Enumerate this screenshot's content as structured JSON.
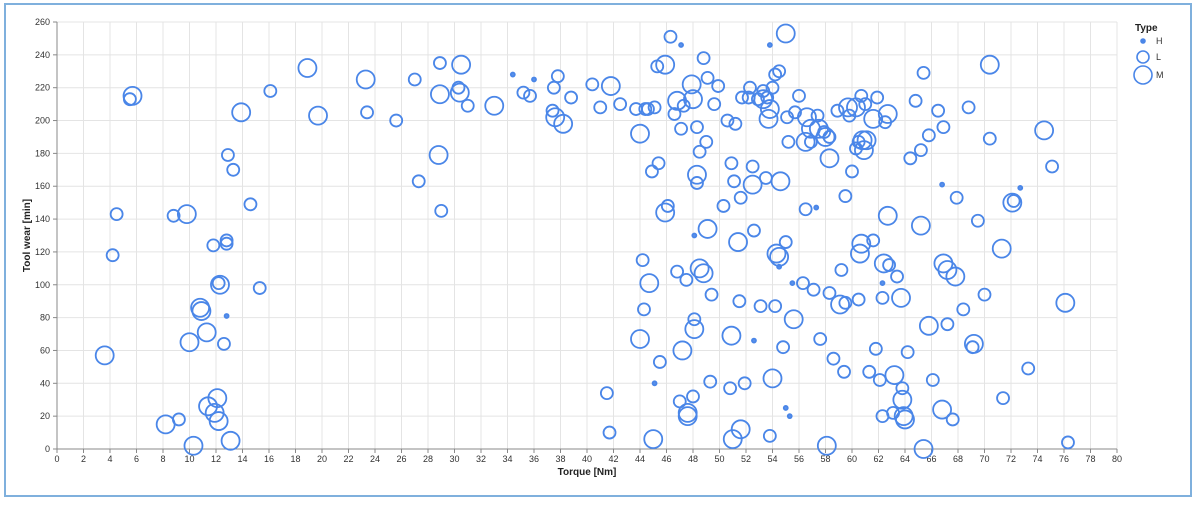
{
  "chart_data": {
    "type": "scatter",
    "xlabel": "Torque [Nm]",
    "ylabel": "Tool wear [min]",
    "xlim": [
      0,
      80
    ],
    "ylim": [
      0,
      260
    ],
    "xticks": [
      0,
      2,
      4,
      6,
      8,
      10,
      12,
      14,
      16,
      18,
      20,
      22,
      24,
      26,
      28,
      30,
      32,
      34,
      36,
      38,
      40,
      42,
      44,
      46,
      48,
      50,
      52,
      54,
      56,
      58,
      60,
      62,
      64,
      66,
      68,
      70,
      72,
      74,
      76,
      78,
      80
    ],
    "yticks": [
      0,
      20,
      40,
      60,
      80,
      100,
      120,
      140,
      160,
      180,
      200,
      220,
      240,
      260
    ],
    "grid": true,
    "legend": {
      "title": "Type",
      "placement": "right",
      "entries": [
        "H",
        "L",
        "M"
      ]
    },
    "color": "#4a86e8",
    "series": [
      {
        "name": "H",
        "points": [
          [
            12.8,
            81
          ],
          [
            34.4,
            228
          ],
          [
            36,
            225
          ],
          [
            45.1,
            40
          ],
          [
            47.1,
            246
          ],
          [
            48.1,
            130
          ],
          [
            52.6,
            66
          ],
          [
            53.8,
            246
          ],
          [
            54.5,
            111
          ],
          [
            55,
            25
          ],
          [
            55.3,
            20
          ],
          [
            55.5,
            101
          ],
          [
            57.3,
            147
          ],
          [
            62.3,
            101
          ],
          [
            66.8,
            161
          ],
          [
            72.7,
            159
          ]
        ]
      },
      {
        "name": "L",
        "points": [
          [
            4.2,
            118
          ],
          [
            4.5,
            143
          ],
          [
            5.5,
            213
          ],
          [
            8.8,
            142
          ],
          [
            9.2,
            18
          ],
          [
            11.8,
            124
          ],
          [
            12.2,
            101
          ],
          [
            12.6,
            64
          ],
          [
            12.8,
            127
          ],
          [
            12.8,
            125
          ],
          [
            12.9,
            179
          ],
          [
            13.3,
            170
          ],
          [
            14.6,
            149
          ],
          [
            15.3,
            98
          ],
          [
            16.1,
            218
          ],
          [
            23.4,
            205
          ],
          [
            25.6,
            200
          ],
          [
            27,
            225
          ],
          [
            27.3,
            163
          ],
          [
            28.9,
            235
          ],
          [
            29,
            145
          ],
          [
            30.3,
            220
          ],
          [
            31,
            209
          ],
          [
            35.2,
            217
          ],
          [
            35.7,
            215
          ],
          [
            37.4,
            206
          ],
          [
            37.5,
            220
          ],
          [
            37.8,
            227
          ],
          [
            38.8,
            214
          ],
          [
            40.4,
            222
          ],
          [
            41,
            208
          ],
          [
            41.5,
            34
          ],
          [
            41.7,
            10
          ],
          [
            44.2,
            115
          ],
          [
            44.3,
            85
          ],
          [
            44.4,
            207
          ],
          [
            45.1,
            208
          ],
          [
            45.4,
            174
          ],
          [
            45.5,
            53
          ],
          [
            46.1,
            148
          ],
          [
            46.3,
            251
          ],
          [
            46.6,
            204
          ],
          [
            46.8,
            108
          ],
          [
            47,
            29
          ],
          [
            47.3,
            209
          ],
          [
            47.5,
            103
          ],
          [
            48,
            32
          ],
          [
            48.1,
            79
          ],
          [
            48.3,
            162
          ],
          [
            48.5,
            181
          ],
          [
            48.8,
            238
          ],
          [
            49,
            187
          ],
          [
            49.1,
            226
          ],
          [
            49.3,
            41
          ],
          [
            49.4,
            94
          ],
          [
            49.6,
            210
          ],
          [
            49.9,
            221
          ],
          [
            50.3,
            148
          ],
          [
            50.6,
            200
          ],
          [
            50.8,
            37
          ],
          [
            50.9,
            174
          ],
          [
            51.1,
            163
          ],
          [
            51.5,
            90
          ],
          [
            51.6,
            153
          ],
          [
            51.9,
            40
          ],
          [
            52.2,
            214
          ],
          [
            52.5,
            172
          ],
          [
            52.6,
            133
          ],
          [
            52.9,
            213
          ],
          [
            53.1,
            87
          ],
          [
            53.3,
            218
          ],
          [
            53.5,
            165
          ],
          [
            53.8,
            8
          ],
          [
            54.2,
            87
          ],
          [
            54.8,
            62
          ],
          [
            55,
            126
          ],
          [
            55.2,
            187
          ],
          [
            55.7,
            205
          ],
          [
            56,
            215
          ],
          [
            56.3,
            101
          ],
          [
            56.9,
            187
          ],
          [
            57.1,
            97
          ],
          [
            57.4,
            203
          ],
          [
            57.6,
            67
          ],
          [
            57.9,
            193
          ],
          [
            58.3,
            190
          ],
          [
            58.6,
            55
          ],
          [
            58.9,
            206
          ],
          [
            59.2,
            109
          ],
          [
            59.5,
            154
          ],
          [
            59.8,
            203
          ],
          [
            60,
            169
          ],
          [
            60.5,
            91
          ],
          [
            60.7,
            215
          ],
          [
            61,
            210
          ],
          [
            61.3,
            47
          ],
          [
            61.6,
            127
          ],
          [
            61.9,
            214
          ],
          [
            62.1,
            42
          ],
          [
            62.3,
            20
          ],
          [
            62.5,
            199
          ],
          [
            62.8,
            112
          ],
          [
            63.1,
            22
          ],
          [
            63.4,
            105
          ],
          [
            63.8,
            37
          ],
          [
            64.2,
            59
          ],
          [
            64.4,
            177
          ],
          [
            64.8,
            212
          ],
          [
            65.2,
            182
          ],
          [
            65.4,
            229
          ],
          [
            65.8,
            191
          ],
          [
            66.1,
            42
          ],
          [
            66.5,
            206
          ],
          [
            66.9,
            196
          ],
          [
            67.2,
            76
          ],
          [
            67.6,
            18
          ],
          [
            67.9,
            153
          ],
          [
            68.4,
            85
          ],
          [
            68.8,
            208
          ],
          [
            69.1,
            62
          ],
          [
            69.5,
            139
          ],
          [
            70,
            94
          ],
          [
            70.4,
            189
          ],
          [
            71.4,
            31
          ],
          [
            72.2,
            151
          ],
          [
            73.3,
            49
          ],
          [
            75.1,
            172
          ],
          [
            76.3,
            4
          ],
          [
            59.4,
            47
          ],
          [
            59.5,
            89
          ],
          [
            61.8,
            61
          ],
          [
            62.3,
            92
          ],
          [
            60.5,
            187
          ],
          [
            60.3,
            183
          ],
          [
            56.5,
            146
          ],
          [
            58.3,
            95
          ],
          [
            54,
            220
          ],
          [
            54.2,
            228
          ],
          [
            54.5,
            230
          ],
          [
            55.1,
            202
          ],
          [
            53.6,
            214
          ],
          [
            52.3,
            220
          ],
          [
            51.7,
            214
          ],
          [
            51.2,
            198
          ],
          [
            48.3,
            196
          ],
          [
            47.1,
            195
          ],
          [
            44.9,
            169
          ],
          [
            45.3,
            233
          ],
          [
            44.6,
            207
          ],
          [
            43.7,
            207
          ],
          [
            42.5,
            210
          ]
        ]
      },
      {
        "name": "M",
        "points": [
          [
            3.6,
            57
          ],
          [
            5.7,
            215
          ],
          [
            8.2,
            15
          ],
          [
            9.8,
            143
          ],
          [
            10,
            65
          ],
          [
            10.3,
            2
          ],
          [
            10.8,
            86
          ],
          [
            10.9,
            84
          ],
          [
            11.3,
            71
          ],
          [
            11.4,
            26
          ],
          [
            11.9,
            22
          ],
          [
            12.1,
            31
          ],
          [
            12.2,
            17
          ],
          [
            12.3,
            100
          ],
          [
            13.1,
            5
          ],
          [
            13.9,
            205
          ],
          [
            18.9,
            232
          ],
          [
            19.7,
            203
          ],
          [
            23.3,
            225
          ],
          [
            28.8,
            179
          ],
          [
            28.9,
            216
          ],
          [
            30.5,
            234
          ],
          [
            30.4,
            217
          ],
          [
            33,
            209
          ],
          [
            37.6,
            202
          ],
          [
            38.2,
            198
          ],
          [
            41.8,
            221
          ],
          [
            44,
            192
          ],
          [
            44,
            67
          ],
          [
            44.7,
            101
          ],
          [
            45,
            6
          ],
          [
            45.9,
            144
          ],
          [
            45.9,
            234
          ],
          [
            46.8,
            212
          ],
          [
            47.2,
            60
          ],
          [
            47.6,
            22
          ],
          [
            47.6,
            20
          ],
          [
            47.9,
            222
          ],
          [
            48,
            213
          ],
          [
            48.1,
            73
          ],
          [
            48.3,
            167
          ],
          [
            48.5,
            110
          ],
          [
            48.8,
            107
          ],
          [
            49.1,
            134
          ],
          [
            50.9,
            69
          ],
          [
            51,
            6
          ],
          [
            51.4,
            126
          ],
          [
            51.6,
            12
          ],
          [
            52.5,
            161
          ],
          [
            53.3,
            213
          ],
          [
            53.7,
            201
          ],
          [
            54,
            43
          ],
          [
            54.3,
            119
          ],
          [
            54.5,
            117
          ],
          [
            54.6,
            163
          ],
          [
            55,
            253
          ],
          [
            55.6,
            79
          ],
          [
            56.6,
            202
          ],
          [
            56.9,
            195
          ],
          [
            57.5,
            195
          ],
          [
            58.3,
            177
          ],
          [
            58.1,
            2
          ],
          [
            59.1,
            88
          ],
          [
            59.7,
            208
          ],
          [
            60.3,
            208
          ],
          [
            60.6,
            119
          ],
          [
            60.7,
            125
          ],
          [
            60.9,
            182
          ],
          [
            61.6,
            201
          ],
          [
            62.4,
            113
          ],
          [
            62.7,
            142
          ],
          [
            62.7,
            204
          ],
          [
            63.2,
            45
          ],
          [
            63.7,
            92
          ],
          [
            63.8,
            30
          ],
          [
            63.9,
            20
          ],
          [
            64,
            18
          ],
          [
            65.2,
            136
          ],
          [
            65.4,
            0
          ],
          [
            65.8,
            75
          ],
          [
            66.8,
            24
          ],
          [
            66.9,
            113
          ],
          [
            67.2,
            109
          ],
          [
            67.8,
            105
          ],
          [
            69.2,
            64
          ],
          [
            70.4,
            234
          ],
          [
            71.3,
            122
          ],
          [
            72.1,
            150
          ],
          [
            74.5,
            194
          ],
          [
            76.1,
            89
          ],
          [
            60.8,
            188
          ],
          [
            61.1,
            188
          ],
          [
            56.5,
            187
          ],
          [
            58,
            190
          ],
          [
            53.8,
            207
          ]
        ]
      }
    ]
  }
}
